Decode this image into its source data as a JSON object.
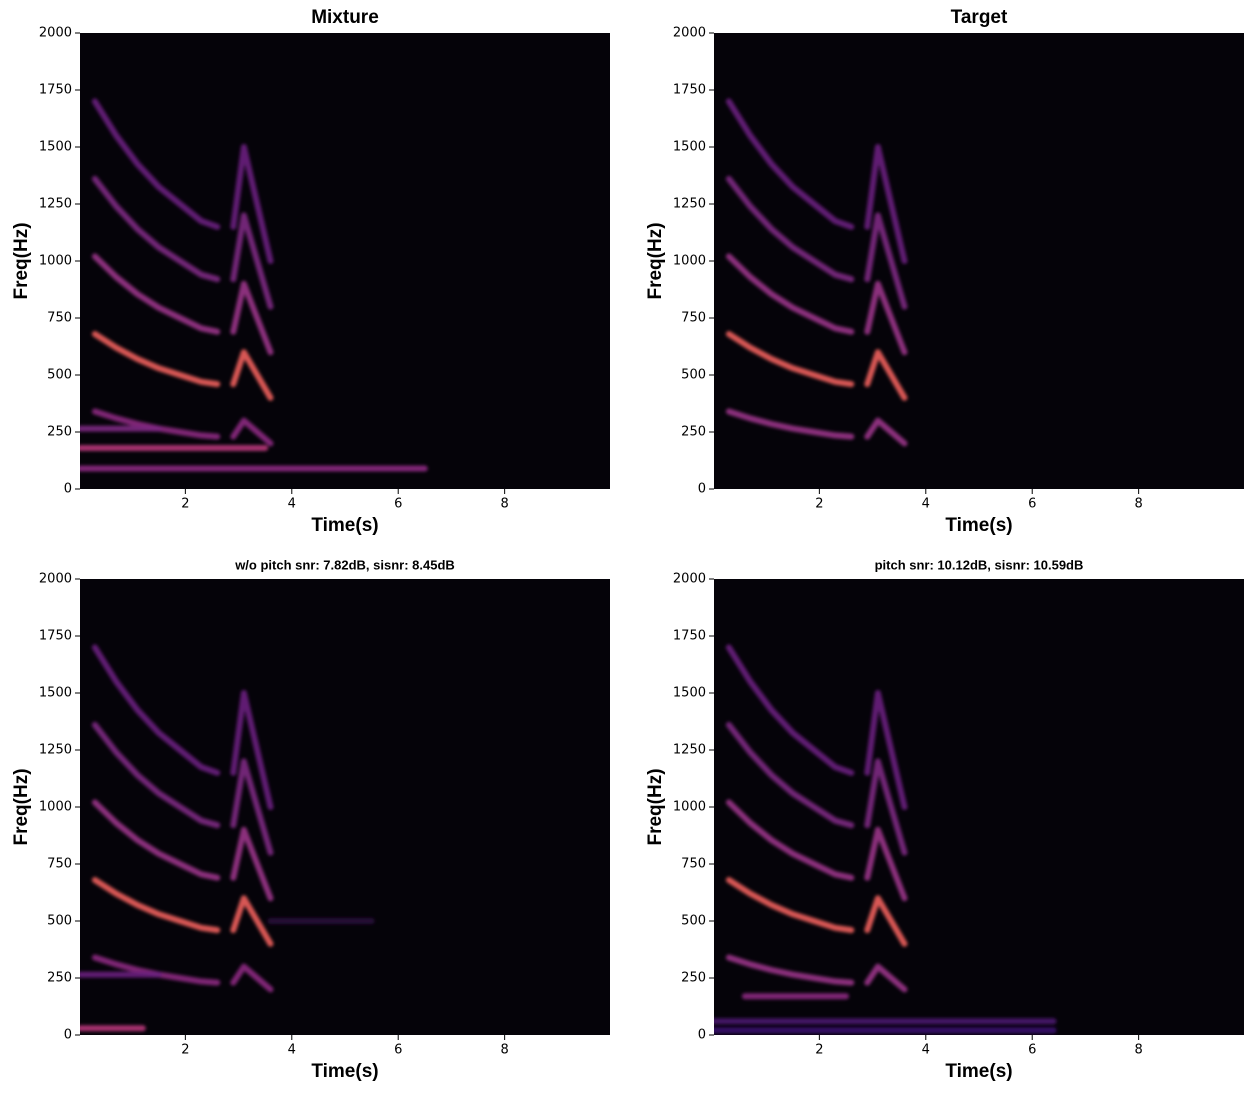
{
  "chart_data": [
    {
      "type": "spectrogram",
      "title": "Mixture",
      "xlabel": "Time(s)",
      "ylabel": "Freq(Hz)",
      "xlim": [
        0.02,
        9.98
      ],
      "ylim": [
        0,
        2000
      ],
      "xticks": [
        2,
        4,
        6,
        8
      ],
      "yticks": [
        0,
        250,
        500,
        750,
        1000,
        1250,
        1500,
        1750,
        2000
      ],
      "series": [
        {
          "color": "#8c2981",
          "x": [
            0.3,
            0.7,
            1.1,
            1.5,
            1.9,
            2.3,
            2.6,
            2.75,
            2.9,
            3.1,
            3.3,
            3.6
          ],
          "values": [
            340,
            310,
            285,
            265,
            250,
            235,
            230,
            null,
            230,
            300,
            260,
            200
          ]
        },
        {
          "color": "#f0605d",
          "x": [
            0.3,
            0.7,
            1.1,
            1.5,
            1.9,
            2.3,
            2.6,
            2.75,
            2.9,
            3.1,
            3.3,
            3.6
          ],
          "values": [
            680,
            620,
            570,
            530,
            500,
            470,
            460,
            null,
            460,
            600,
            520,
            400
          ]
        },
        {
          "color": "#9a3388",
          "x": [
            0.3,
            0.7,
            1.1,
            1.5,
            1.9,
            2.3,
            2.6,
            2.75,
            2.9,
            3.1,
            3.3,
            3.6
          ],
          "values": [
            1020,
            930,
            855,
            795,
            750,
            705,
            690,
            null,
            690,
            900,
            780,
            600
          ]
        },
        {
          "color": "#7d2882",
          "x": [
            0.3,
            0.7,
            1.1,
            1.5,
            1.9,
            2.3,
            2.6,
            2.75,
            2.9,
            3.1,
            3.3,
            3.6
          ],
          "values": [
            1360,
            1240,
            1140,
            1060,
            1000,
            940,
            920,
            null,
            920,
            1200,
            1040,
            800
          ]
        },
        {
          "color": "#6a207e",
          "x": [
            0.3,
            0.7,
            1.1,
            1.5,
            1.9,
            2.3,
            2.6,
            2.75,
            2.9,
            3.1,
            3.3,
            3.6
          ],
          "values": [
            1700,
            1550,
            1425,
            1325,
            1250,
            1175,
            1150,
            null,
            1150,
            1500,
            1300,
            1000
          ]
        },
        {
          "color": "#8c2981",
          "x": [
            0.02,
            6.5
          ],
          "values": [
            90,
            90
          ]
        },
        {
          "color": "#b73779",
          "x": [
            0.02,
            3.5
          ],
          "values": [
            180,
            180
          ]
        },
        {
          "color": "#7d2882",
          "x": [
            0.02,
            1.5
          ],
          "values": [
            265,
            265
          ]
        }
      ]
    },
    {
      "type": "spectrogram",
      "title": "Target",
      "xlabel": "Time(s)",
      "ylabel": "Freq(Hz)",
      "xlim": [
        0.02,
        9.98
      ],
      "ylim": [
        0,
        2000
      ],
      "xticks": [
        2,
        4,
        6,
        8
      ],
      "yticks": [
        0,
        250,
        500,
        750,
        1000,
        1250,
        1500,
        1750,
        2000
      ],
      "series": [
        {
          "color": "#9a3388",
          "x": [
            0.3,
            0.7,
            1.1,
            1.5,
            1.9,
            2.3,
            2.6,
            2.75,
            2.9,
            3.1,
            3.3,
            3.6
          ],
          "values": [
            340,
            310,
            285,
            265,
            250,
            235,
            230,
            null,
            230,
            300,
            260,
            200
          ]
        },
        {
          "color": "#f0605d",
          "x": [
            0.3,
            0.7,
            1.1,
            1.5,
            1.9,
            2.3,
            2.6,
            2.75,
            2.9,
            3.1,
            3.3,
            3.6
          ],
          "values": [
            680,
            620,
            570,
            530,
            500,
            470,
            460,
            null,
            460,
            600,
            520,
            400
          ]
        },
        {
          "color": "#9a3388",
          "x": [
            0.3,
            0.7,
            1.1,
            1.5,
            1.9,
            2.3,
            2.6,
            2.75,
            2.9,
            3.1,
            3.3,
            3.6
          ],
          "values": [
            1020,
            930,
            855,
            795,
            750,
            705,
            690,
            null,
            690,
            900,
            780,
            600
          ]
        },
        {
          "color": "#7d2882",
          "x": [
            0.3,
            0.7,
            1.1,
            1.5,
            1.9,
            2.3,
            2.6,
            2.75,
            2.9,
            3.1,
            3.3,
            3.6
          ],
          "values": [
            1360,
            1240,
            1140,
            1060,
            1000,
            940,
            920,
            null,
            920,
            1200,
            1040,
            800
          ]
        },
        {
          "color": "#6a207e",
          "x": [
            0.3,
            0.7,
            1.1,
            1.5,
            1.9,
            2.3,
            2.6,
            2.75,
            2.9,
            3.1,
            3.3,
            3.6
          ],
          "values": [
            1700,
            1550,
            1425,
            1325,
            1250,
            1175,
            1150,
            null,
            1150,
            1500,
            1300,
            1000
          ]
        }
      ]
    },
    {
      "type": "spectrogram",
      "title": "w/o pitch snr: 7.82dB, sisnr: 8.45dB",
      "xlabel": "Time(s)",
      "ylabel": "Freq(Hz)",
      "xlim": [
        0.02,
        9.98
      ],
      "ylim": [
        0,
        2000
      ],
      "xticks": [
        2,
        4,
        6,
        8
      ],
      "yticks": [
        0,
        250,
        500,
        750,
        1000,
        1250,
        1500,
        1750,
        2000
      ],
      "series": [
        {
          "color": "#8c2981",
          "x": [
            0.3,
            0.7,
            1.1,
            1.5,
            1.9,
            2.3,
            2.6,
            2.75,
            2.9,
            3.1,
            3.3,
            3.6
          ],
          "values": [
            340,
            310,
            285,
            265,
            250,
            235,
            230,
            null,
            230,
            300,
            260,
            200
          ]
        },
        {
          "color": "#f0605d",
          "x": [
            0.3,
            0.7,
            1.1,
            1.5,
            1.9,
            2.3,
            2.6,
            2.75,
            2.9,
            3.1,
            3.3,
            3.6
          ],
          "values": [
            680,
            620,
            570,
            530,
            500,
            470,
            460,
            null,
            460,
            600,
            520,
            400
          ]
        },
        {
          "color": "#9a3388",
          "x": [
            0.3,
            0.7,
            1.1,
            1.5,
            1.9,
            2.3,
            2.6,
            2.75,
            2.9,
            3.1,
            3.3,
            3.6
          ],
          "values": [
            1020,
            930,
            855,
            795,
            750,
            705,
            690,
            null,
            690,
            900,
            780,
            600
          ]
        },
        {
          "color": "#7d2882",
          "x": [
            0.3,
            0.7,
            1.1,
            1.5,
            1.9,
            2.3,
            2.6,
            2.75,
            2.9,
            3.1,
            3.3,
            3.6
          ],
          "values": [
            1360,
            1240,
            1140,
            1060,
            1000,
            940,
            920,
            null,
            920,
            1200,
            1040,
            800
          ]
        },
        {
          "color": "#6a207e",
          "x": [
            0.3,
            0.7,
            1.1,
            1.5,
            1.9,
            2.3,
            2.6,
            2.75,
            2.9,
            3.1,
            3.3,
            3.6
          ],
          "values": [
            1700,
            1550,
            1425,
            1325,
            1250,
            1175,
            1150,
            null,
            1150,
            1500,
            1300,
            1000
          ]
        },
        {
          "color": "#2a0f3c",
          "x": [
            3.6,
            5.5
          ],
          "values": [
            500,
            500
          ]
        },
        {
          "color": "#6a207e",
          "x": [
            0.02,
            1.5
          ],
          "values": [
            265,
            265
          ]
        },
        {
          "color": "#b73779",
          "x": [
            0.02,
            1.2
          ],
          "values": [
            30,
            30
          ]
        }
      ]
    },
    {
      "type": "spectrogram",
      "title": "pitch snr: 10.12dB, sisnr: 10.59dB",
      "xlabel": "Time(s)",
      "ylabel": "Freq(Hz)",
      "xlim": [
        0.02,
        9.98
      ],
      "ylim": [
        0,
        2000
      ],
      "xticks": [
        2,
        4,
        6,
        8
      ],
      "yticks": [
        0,
        250,
        500,
        750,
        1000,
        1250,
        1500,
        1750,
        2000
      ],
      "series": [
        {
          "color": "#9a3388",
          "x": [
            0.3,
            0.7,
            1.1,
            1.5,
            1.9,
            2.3,
            2.6,
            2.75,
            2.9,
            3.1,
            3.3,
            3.6
          ],
          "values": [
            340,
            310,
            285,
            265,
            250,
            235,
            230,
            null,
            230,
            300,
            260,
            200
          ]
        },
        {
          "color": "#f0605d",
          "x": [
            0.3,
            0.7,
            1.1,
            1.5,
            1.9,
            2.3,
            2.6,
            2.75,
            2.9,
            3.1,
            3.3,
            3.6
          ],
          "values": [
            680,
            620,
            570,
            530,
            500,
            470,
            460,
            null,
            460,
            600,
            520,
            400
          ]
        },
        {
          "color": "#9a3388",
          "x": [
            0.3,
            0.7,
            1.1,
            1.5,
            1.9,
            2.3,
            2.6,
            2.75,
            2.9,
            3.1,
            3.3,
            3.6
          ],
          "values": [
            1020,
            930,
            855,
            795,
            750,
            705,
            690,
            null,
            690,
            900,
            780,
            600
          ]
        },
        {
          "color": "#7d2882",
          "x": [
            0.3,
            0.7,
            1.1,
            1.5,
            1.9,
            2.3,
            2.6,
            2.75,
            2.9,
            3.1,
            3.3,
            3.6
          ],
          "values": [
            1360,
            1240,
            1140,
            1060,
            1000,
            940,
            920,
            null,
            920,
            1200,
            1040,
            800
          ]
        },
        {
          "color": "#6a207e",
          "x": [
            0.3,
            0.7,
            1.1,
            1.5,
            1.9,
            2.3,
            2.6,
            2.75,
            2.9,
            3.1,
            3.3,
            3.6
          ],
          "values": [
            1700,
            1550,
            1425,
            1325,
            1250,
            1175,
            1150,
            null,
            1150,
            1500,
            1300,
            1000
          ]
        },
        {
          "color": "#8c2981",
          "x": [
            0.6,
            2.5
          ],
          "values": [
            170,
            170
          ]
        },
        {
          "color": "#4a1670",
          "x": [
            0.02,
            6.4
          ],
          "values": [
            60,
            60
          ]
        },
        {
          "color": "#3b0f70",
          "x": [
            0.02,
            6.4
          ],
          "values": [
            20,
            20
          ]
        }
      ]
    }
  ]
}
